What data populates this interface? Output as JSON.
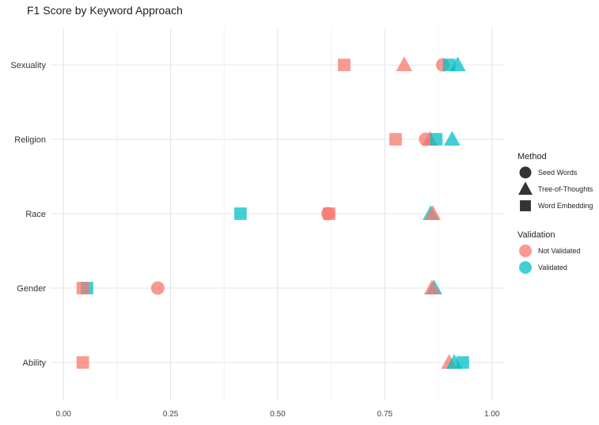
{
  "chart_data": {
    "type": "scatter",
    "title": "F1 Score by Keyword Approach",
    "xlabel": "",
    "ylabel": "",
    "xlim": [
      -0.03,
      1.03
    ],
    "x_ticks": [
      0.0,
      0.25,
      0.5,
      0.75,
      1.0
    ],
    "x_tick_labels": [
      "0.00",
      "0.25",
      "0.50",
      "0.75",
      "1.00"
    ],
    "categories": [
      "Sexuality",
      "Religion",
      "Race",
      "Gender",
      "Ability"
    ],
    "grid": true,
    "legend_position": "right",
    "method_legend": {
      "title": "Method",
      "entries": [
        {
          "name": "Seed Words",
          "shape": "circle"
        },
        {
          "name": "Tree-of-Thoughts",
          "shape": "triangle"
        },
        {
          "name": "Word Embedding",
          "shape": "square"
        }
      ]
    },
    "validation_legend": {
      "title": "Validation",
      "entries": [
        {
          "name": "Not Validated",
          "color": "#F8766D"
        },
        {
          "name": "Validated",
          "color": "#00BFC4"
        }
      ]
    },
    "points": [
      {
        "category": "Sexuality",
        "method": "Word Embedding",
        "validation": "Not Validated",
        "x": 0.655
      },
      {
        "category": "Sexuality",
        "method": "Tree-of-Thoughts",
        "validation": "Not Validated",
        "x": 0.795
      },
      {
        "category": "Sexuality",
        "method": "Seed Words",
        "validation": "Not Validated",
        "x": 0.885
      },
      {
        "category": "Sexuality",
        "method": "Word Embedding",
        "validation": "Validated",
        "x": 0.9
      },
      {
        "category": "Sexuality",
        "method": "Tree-of-Thoughts",
        "validation": "Validated",
        "x": 0.92
      },
      {
        "category": "Religion",
        "method": "Word Embedding",
        "validation": "Not Validated",
        "x": 0.775
      },
      {
        "category": "Religion",
        "method": "Seed Words",
        "validation": "Not Validated",
        "x": 0.845
      },
      {
        "category": "Religion",
        "method": "Tree-of-Thoughts",
        "validation": "Not Validated",
        "x": 0.855
      },
      {
        "category": "Religion",
        "method": "Word Embedding",
        "validation": "Validated",
        "x": 0.87
      },
      {
        "category": "Religion",
        "method": "Tree-of-Thoughts",
        "validation": "Validated",
        "x": 0.907
      },
      {
        "category": "Race",
        "method": "Word Embedding",
        "validation": "Validated",
        "x": 0.413
      },
      {
        "category": "Race",
        "method": "Seed Words",
        "validation": "Not Validated",
        "x": 0.617
      },
      {
        "category": "Race",
        "method": "Word Embedding",
        "validation": "Not Validated",
        "x": 0.62
      },
      {
        "category": "Race",
        "method": "Tree-of-Thoughts",
        "validation": "Validated",
        "x": 0.857
      },
      {
        "category": "Race",
        "method": "Tree-of-Thoughts",
        "validation": "Not Validated",
        "x": 0.862
      },
      {
        "category": "Gender",
        "method": "Word Embedding",
        "validation": "Validated",
        "x": 0.055
      },
      {
        "category": "Gender",
        "method": "Word Embedding",
        "validation": "Not Validated",
        "x": 0.045
      },
      {
        "category": "Gender",
        "method": "Seed Words",
        "validation": "Not Validated",
        "x": 0.22
      },
      {
        "category": "Gender",
        "method": "Tree-of-Thoughts",
        "validation": "Validated",
        "x": 0.865
      },
      {
        "category": "Gender",
        "method": "Tree-of-Thoughts",
        "validation": "Not Validated",
        "x": 0.86
      },
      {
        "category": "Ability",
        "method": "Word Embedding",
        "validation": "Not Validated",
        "x": 0.045
      },
      {
        "category": "Ability",
        "method": "Tree-of-Thoughts",
        "validation": "Not Validated",
        "x": 0.9
      },
      {
        "category": "Ability",
        "method": "Tree-of-Thoughts",
        "validation": "Validated",
        "x": 0.912
      },
      {
        "category": "Ability",
        "method": "Word Embedding",
        "validation": "Validated",
        "x": 0.932
      }
    ]
  }
}
